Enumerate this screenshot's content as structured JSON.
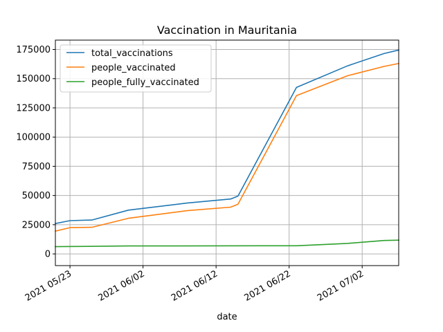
{
  "chart_data": {
    "type": "line",
    "title": "Vaccination in Mauritania",
    "xlabel": "date",
    "ylabel": "",
    "grid": true,
    "legend_position": "upper-left",
    "x_range": [
      "2021-05-21",
      "2021-07-07"
    ],
    "ylim": [
      -10000,
      183000
    ],
    "x_ticks": [
      {
        "date": "2021-05-23",
        "label": "2021 05/23"
      },
      {
        "date": "2021-06-02",
        "label": "2021 06/02"
      },
      {
        "date": "2021-06-12",
        "label": "2021 06/12"
      },
      {
        "date": "2021-06-22",
        "label": "2021 06/22"
      },
      {
        "date": "2021-07-02",
        "label": "2021 07/02"
      }
    ],
    "y_ticks": [
      {
        "value": 0,
        "label": "0"
      },
      {
        "value": 25000,
        "label": "25000"
      },
      {
        "value": 50000,
        "label": "50000"
      },
      {
        "value": 75000,
        "label": "75000"
      },
      {
        "value": 100000,
        "label": "100000"
      },
      {
        "value": 125000,
        "label": "125000"
      },
      {
        "value": 150000,
        "label": "150000"
      },
      {
        "value": 175000,
        "label": "175000"
      }
    ],
    "series": [
      {
        "name": "total_vaccinations",
        "color": "#1f77b4",
        "points": [
          {
            "x": "2021-05-21",
            "y": 26000
          },
          {
            "x": "2021-05-23",
            "y": 28500
          },
          {
            "x": "2021-05-26",
            "y": 29000
          },
          {
            "x": "2021-05-31",
            "y": 37500
          },
          {
            "x": "2021-06-08",
            "y": 43500
          },
          {
            "x": "2021-06-14",
            "y": 47000
          },
          {
            "x": "2021-06-15",
            "y": 49500
          },
          {
            "x": "2021-06-23",
            "y": 142500
          },
          {
            "x": "2021-06-30",
            "y": 161000
          },
          {
            "x": "2021-07-05",
            "y": 171500
          },
          {
            "x": "2021-07-07",
            "y": 174500
          }
        ]
      },
      {
        "name": "people_vaccinated",
        "color": "#ff7f0e",
        "points": [
          {
            "x": "2021-05-21",
            "y": 19500
          },
          {
            "x": "2021-05-23",
            "y": 22500
          },
          {
            "x": "2021-05-26",
            "y": 22800
          },
          {
            "x": "2021-05-31",
            "y": 30500
          },
          {
            "x": "2021-06-08",
            "y": 37000
          },
          {
            "x": "2021-06-14",
            "y": 40000
          },
          {
            "x": "2021-06-15",
            "y": 42500
          },
          {
            "x": "2021-06-23",
            "y": 135500
          },
          {
            "x": "2021-06-30",
            "y": 152500
          },
          {
            "x": "2021-07-05",
            "y": 160500
          },
          {
            "x": "2021-07-07",
            "y": 163000
          }
        ]
      },
      {
        "name": "people_fully_vaccinated",
        "color": "#2ca02c",
        "points": [
          {
            "x": "2021-05-21",
            "y": 6200
          },
          {
            "x": "2021-05-31",
            "y": 6800
          },
          {
            "x": "2021-06-23",
            "y": 7000
          },
          {
            "x": "2021-06-30",
            "y": 9000
          },
          {
            "x": "2021-07-05",
            "y": 11500
          },
          {
            "x": "2021-07-07",
            "y": 11800
          }
        ]
      }
    ]
  }
}
